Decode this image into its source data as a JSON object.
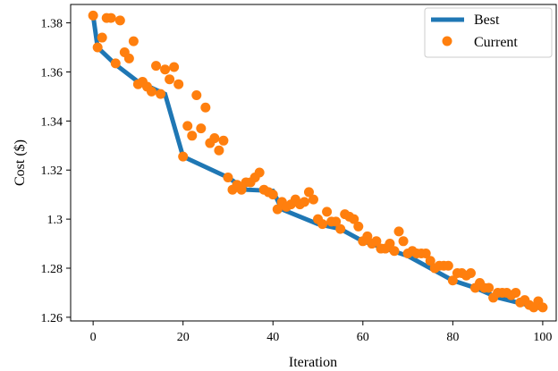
{
  "chart_data": {
    "type": "line",
    "title": "",
    "xlabel": "Iteration",
    "ylabel": "Cost ($)",
    "xlim": [
      -5,
      103
    ],
    "ylim": [
      1.2585,
      1.3875
    ],
    "xticks": [
      0,
      20,
      40,
      60,
      80,
      100
    ],
    "xtick_labels": [
      "0",
      "20",
      "40",
      "60",
      "80",
      "100"
    ],
    "yticks": [
      1.26,
      1.28,
      1.3,
      1.32,
      1.34,
      1.36,
      1.38
    ],
    "ytick_labels": [
      "1.26",
      "1.28",
      "1.3",
      "1.32",
      "1.34",
      "1.36",
      "1.38"
    ],
    "grid": false,
    "legend_position": "top-right",
    "series": [
      {
        "name": "Best",
        "kind": "line",
        "color": "#1f77b4",
        "x": [
          0,
          1,
          5,
          10,
          16,
          20,
          30,
          34,
          40,
          42,
          50,
          55,
          60,
          65,
          70,
          80,
          85,
          90,
          100
        ],
        "y": [
          1.383,
          1.37,
          1.363,
          1.356,
          1.351,
          1.3255,
          1.317,
          1.312,
          1.3115,
          1.304,
          1.298,
          1.296,
          1.291,
          1.288,
          1.285,
          1.275,
          1.272,
          1.268,
          1.2635
        ]
      },
      {
        "name": "Current",
        "kind": "scatter",
        "color": "#ff7f0e",
        "x": [
          0,
          1,
          2,
          3,
          4,
          5,
          6,
          7,
          8,
          9,
          10,
          11,
          12,
          13,
          14,
          15,
          16,
          17,
          18,
          19,
          20,
          21,
          22,
          23,
          24,
          25,
          26,
          27,
          28,
          29,
          30,
          31,
          32,
          33,
          34,
          35,
          36,
          37,
          38,
          39,
          40,
          41,
          42,
          43,
          44,
          45,
          46,
          47,
          48,
          49,
          50,
          51,
          52,
          53,
          54,
          55,
          56,
          57,
          58,
          59,
          60,
          61,
          62,
          63,
          64,
          65,
          66,
          67,
          68,
          69,
          70,
          71,
          72,
          73,
          74,
          75,
          76,
          77,
          78,
          79,
          80,
          81,
          82,
          83,
          84,
          85,
          86,
          87,
          88,
          89,
          90,
          91,
          92,
          93,
          94,
          95,
          96,
          97,
          98,
          99,
          100
        ],
        "y": [
          1.383,
          1.37,
          1.374,
          1.382,
          1.382,
          1.3635,
          1.381,
          1.368,
          1.3655,
          1.3725,
          1.355,
          1.356,
          1.354,
          1.352,
          1.3625,
          1.351,
          1.361,
          1.357,
          1.362,
          1.355,
          1.3255,
          1.338,
          1.334,
          1.3505,
          1.337,
          1.3455,
          1.331,
          1.333,
          1.328,
          1.332,
          1.317,
          1.312,
          1.314,
          1.312,
          1.315,
          1.315,
          1.317,
          1.319,
          1.312,
          1.311,
          1.31,
          1.304,
          1.307,
          1.305,
          1.306,
          1.308,
          1.306,
          1.307,
          1.311,
          1.308,
          1.3,
          1.298,
          1.303,
          1.299,
          1.299,
          1.296,
          1.302,
          1.301,
          1.3,
          1.297,
          1.291,
          1.293,
          1.29,
          1.291,
          1.288,
          1.288,
          1.29,
          1.287,
          1.295,
          1.291,
          1.286,
          1.287,
          1.286,
          1.286,
          1.286,
          1.283,
          1.28,
          1.281,
          1.281,
          1.281,
          1.275,
          1.278,
          1.278,
          1.277,
          1.278,
          1.272,
          1.274,
          1.272,
          1.272,
          1.268,
          1.27,
          1.27,
          1.27,
          1.269,
          1.27,
          1.266,
          1.267,
          1.265,
          1.264,
          1.2665,
          1.264
        ]
      }
    ]
  }
}
